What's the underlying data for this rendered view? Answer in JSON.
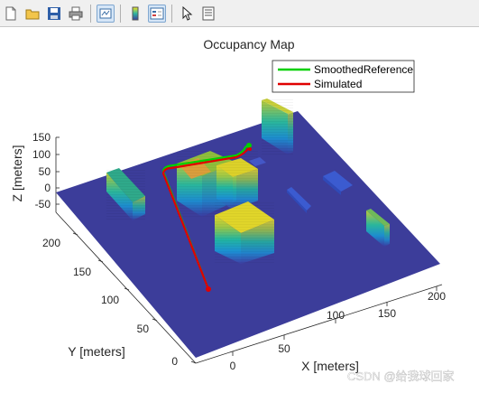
{
  "toolbar": {
    "icons": [
      "new-figure-icon",
      "open-file-icon",
      "save-icon",
      "print-icon",
      "link-plot-icon",
      "colorbar-icon",
      "legend-icon",
      "pointer-icon",
      "property-inspector-icon"
    ]
  },
  "colors": {
    "ground": "#3c3d9a",
    "smoothed": "#00d000",
    "simulated": "#e00000"
  },
  "chart_data": {
    "type": "occupancy-map-3d",
    "title": "Occupancy Map",
    "xlabel": "X [meters]",
    "ylabel": "Y [meters]",
    "zlabel": "Z [meters]",
    "x_ticks": [
      "0",
      "50",
      "100",
      "150",
      "200"
    ],
    "y_ticks": [
      "0",
      "50",
      "100",
      "150",
      "200"
    ],
    "z_ticks": [
      "150",
      "100",
      "50",
      "0",
      "-50"
    ],
    "legend": {
      "placement": "top-right",
      "entries": [
        "SmoothedReference",
        "Simulated"
      ]
    },
    "series": [
      {
        "name": "SmoothedReference",
        "color": "#00d000"
      },
      {
        "name": "Simulated",
        "color": "#e00000"
      }
    ]
  },
  "watermark": "CSDN @给我球回家"
}
